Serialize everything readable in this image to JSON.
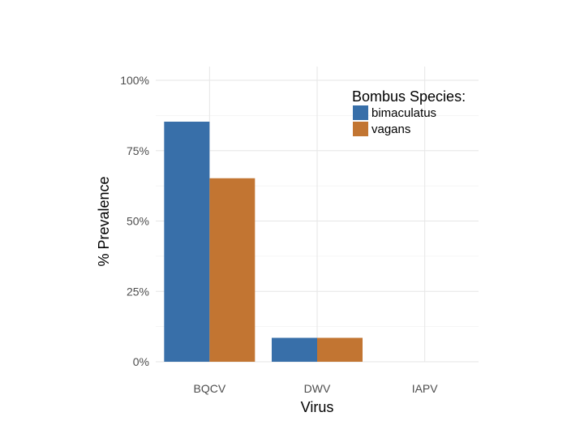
{
  "chart_data": {
    "type": "bar",
    "title": "",
    "xlabel": "Virus",
    "ylabel": "% Prevalence",
    "categories": [
      "BQCV",
      "DWV",
      "IAPV"
    ],
    "series": [
      {
        "name": "bimaculatus",
        "color": "#386fa9",
        "values": [
          85.3,
          8.5,
          0
        ]
      },
      {
        "name": "vagans",
        "color": "#c27532",
        "values": [
          65.2,
          8.5,
          0
        ]
      }
    ],
    "ylim": [
      0,
      100
    ],
    "yticks": [
      0,
      25,
      50,
      75,
      100
    ],
    "ytick_labels": [
      "0%",
      "25%",
      "50%",
      "75%",
      "100%"
    ],
    "grid": true,
    "legend": {
      "title": "Bombus Species:",
      "position": "top-right"
    }
  }
}
